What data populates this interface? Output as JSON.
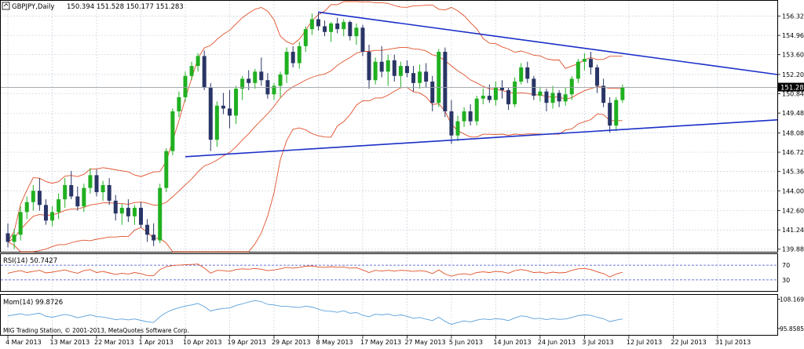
{
  "window": {
    "symbol_header": "GBPJPY,Daily",
    "ohlc_header": "150.394 151.528 150.177 151.283",
    "copyright": "MIG Trading Station, © 2001-2013, MetaQuotes Software Corp."
  },
  "colors": {
    "background": "#ffffff",
    "grid": "#c9d1dc",
    "bull_candle": "#20b020",
    "bear_candle": "#2a3566",
    "bollinger": "#e0502a",
    "trendline": "#1a2fc8",
    "rsi_line": "#e0502a",
    "momentum_line": "#5aa0dc",
    "level_line": "#3a48d0",
    "last_price_box": "#000000"
  },
  "chart_data": [
    {
      "type": "candlestick",
      "title": "GBPJPY,Daily",
      "price_axis_ticks": [
        "156.320",
        "154.960",
        "153.600",
        "152.200",
        "150.840",
        "149.480",
        "148.080",
        "146.720",
        "145.360",
        "144.000",
        "142.600",
        "141.240",
        "139.880"
      ],
      "ylim": [
        139.7,
        156.9
      ],
      "last_price_label": "151.283",
      "last_price": 151.283,
      "date_axis_ticks": [
        "4 Mar 2013",
        "13 Mar 2013",
        "22 Mar 2013",
        "1 Apr 2013",
        "10 Apr 2013",
        "19 Apr 2013",
        "29 Apr 2013",
        "8 May 2013",
        "17 May 2013",
        "27 May 2013",
        "5 Jun 2013",
        "14 Jun 2013",
        "24 Jun 2013",
        "3 Jul 2013",
        "12 Jul 2013",
        "22 Jul 2013",
        "31 Jul 2013"
      ],
      "candles_ohlc": [
        [
          141.0,
          141.7,
          140.0,
          140.4
        ],
        [
          140.4,
          141.3,
          139.9,
          140.9
        ],
        [
          140.9,
          142.9,
          140.5,
          142.5
        ],
        [
          142.5,
          143.6,
          142.0,
          143.2
        ],
        [
          143.2,
          144.4,
          142.6,
          144.0
        ],
        [
          144.0,
          144.9,
          142.6,
          143.0
        ],
        [
          143.0,
          143.4,
          141.6,
          141.9
        ],
        [
          141.9,
          142.9,
          141.5,
          142.5
        ],
        [
          142.5,
          143.8,
          142.0,
          143.4
        ],
        [
          143.4,
          144.9,
          142.8,
          144.4
        ],
        [
          144.4,
          145.4,
          143.4,
          143.6
        ],
        [
          143.6,
          144.3,
          142.6,
          142.9
        ],
        [
          142.9,
          144.5,
          142.5,
          144.2
        ],
        [
          144.2,
          145.6,
          143.8,
          145.1
        ],
        [
          145.1,
          145.5,
          143.6,
          143.9
        ],
        [
          143.9,
          144.7,
          143.3,
          144.4
        ],
        [
          144.4,
          144.9,
          143.0,
          143.3
        ],
        [
          143.3,
          143.7,
          141.9,
          142.4
        ],
        [
          142.4,
          143.1,
          141.6,
          142.8
        ],
        [
          142.8,
          143.4,
          141.8,
          142.2
        ],
        [
          142.2,
          143.0,
          141.6,
          142.8
        ],
        [
          142.8,
          143.2,
          141.4,
          141.6
        ],
        [
          141.6,
          142.0,
          140.4,
          140.9
        ],
        [
          140.9,
          141.7,
          140.1,
          140.5
        ],
        [
          140.5,
          144.5,
          140.3,
          144.2
        ],
        [
          144.2,
          147.0,
          143.9,
          146.8
        ],
        [
          146.8,
          149.8,
          146.5,
          149.6
        ],
        [
          149.6,
          151.0,
          149.2,
          150.6
        ],
        [
          150.6,
          152.4,
          150.3,
          152.1
        ],
        [
          152.1,
          153.1,
          151.8,
          152.8
        ],
        [
          152.8,
          153.7,
          152.4,
          153.5
        ],
        [
          153.5,
          153.9,
          151.1,
          151.3
        ],
        [
          151.3,
          151.6,
          146.8,
          147.6
        ],
        [
          147.6,
          150.3,
          147.1,
          150.0
        ],
        [
          150.0,
          150.9,
          149.4,
          149.8
        ],
        [
          149.8,
          151.1,
          148.4,
          149.3
        ],
        [
          149.3,
          151.4,
          148.7,
          151.2
        ],
        [
          151.2,
          152.1,
          150.4,
          151.9
        ],
        [
          151.9,
          152.5,
          151.1,
          151.6
        ],
        [
          151.6,
          152.6,
          151.2,
          152.4
        ],
        [
          152.4,
          153.4,
          151.4,
          151.8
        ],
        [
          151.8,
          152.3,
          150.5,
          150.8
        ],
        [
          150.8,
          151.6,
          150.4,
          151.4
        ],
        [
          151.4,
          152.4,
          150.6,
          152.2
        ],
        [
          152.2,
          154.1,
          151.6,
          153.8
        ],
        [
          153.8,
          154.2,
          152.7,
          153.0
        ],
        [
          153.0,
          154.5,
          152.6,
          154.2
        ],
        [
          154.2,
          155.6,
          153.8,
          155.4
        ],
        [
          155.4,
          156.5,
          155.0,
          156.1
        ],
        [
          156.1,
          156.6,
          155.3,
          155.6
        ],
        [
          155.6,
          156.0,
          154.9,
          155.2
        ],
        [
          155.2,
          155.9,
          154.5,
          155.8
        ],
        [
          155.8,
          156.2,
          155.1,
          155.4
        ],
        [
          155.4,
          156.1,
          154.9,
          155.9
        ],
        [
          155.9,
          156.0,
          154.6,
          154.9
        ],
        [
          154.9,
          155.8,
          154.3,
          155.5
        ],
        [
          155.5,
          155.7,
          153.5,
          153.8
        ],
        [
          153.8,
          154.3,
          151.2,
          151.8
        ],
        [
          151.8,
          153.4,
          151.5,
          153.1
        ],
        [
          153.1,
          154.2,
          152.0,
          152.4
        ],
        [
          152.4,
          153.6,
          151.4,
          153.2
        ],
        [
          153.2,
          153.6,
          151.7,
          152.1
        ],
        [
          152.1,
          153.1,
          151.3,
          152.8
        ],
        [
          152.8,
          153.2,
          152.0,
          152.3
        ],
        [
          152.3,
          152.8,
          151.0,
          151.6
        ],
        [
          151.6,
          152.9,
          151.2,
          152.4
        ],
        [
          152.4,
          153.0,
          151.3,
          151.7
        ],
        [
          151.7,
          152.1,
          149.6,
          150.2
        ],
        [
          150.2,
          154.0,
          149.9,
          153.8
        ],
        [
          153.8,
          154.1,
          149.2,
          149.6
        ],
        [
          149.6,
          150.4,
          147.3,
          147.9
        ],
        [
          147.9,
          149.3,
          147.5,
          148.9
        ],
        [
          148.9,
          149.9,
          148.5,
          149.6
        ],
        [
          149.6,
          150.1,
          148.6,
          148.9
        ],
        [
          148.9,
          150.7,
          148.6,
          150.5
        ],
        [
          150.5,
          151.2,
          150.1,
          150.7
        ],
        [
          150.7,
          151.5,
          150.2,
          150.4
        ],
        [
          150.4,
          151.7,
          150.0,
          151.3
        ],
        [
          151.3,
          151.8,
          150.5,
          151.1
        ],
        [
          151.1,
          151.3,
          149.7,
          150.1
        ],
        [
          150.1,
          152.0,
          149.9,
          151.7
        ],
        [
          151.7,
          153.0,
          151.5,
          152.7
        ],
        [
          152.7,
          153.1,
          151.6,
          151.9
        ],
        [
          151.9,
          152.1,
          150.4,
          150.7
        ],
        [
          150.7,
          151.3,
          150.3,
          151.0
        ],
        [
          151.0,
          151.2,
          149.6,
          150.2
        ],
        [
          150.2,
          151.4,
          149.8,
          150.9
        ],
        [
          150.9,
          151.1,
          149.9,
          150.3
        ],
        [
          150.3,
          151.3,
          150.0,
          150.8
        ],
        [
          150.8,
          152.1,
          150.4,
          151.9
        ],
        [
          151.9,
          153.3,
          151.6,
          153.1
        ],
        [
          153.1,
          153.7,
          152.5,
          153.3
        ],
        [
          153.3,
          153.8,
          152.2,
          152.7
        ],
        [
          152.7,
          152.9,
          150.9,
          151.4
        ],
        [
          151.4,
          151.9,
          149.9,
          150.2
        ],
        [
          150.2,
          150.6,
          148.1,
          148.6
        ],
        [
          148.6,
          150.6,
          148.2,
          150.4
        ],
        [
          150.4,
          151.5,
          150.2,
          151.3
        ]
      ],
      "trendlines": [
        {
          "from": [
            "8 May 2013",
            156.6
          ],
          "to": [
            "chart right edge",
            152.2
          ]
        },
        {
          "from": [
            "10 Apr 2013",
            146.4
          ],
          "to": [
            "chart right edge",
            149.0
          ]
        }
      ]
    },
    {
      "type": "line",
      "title": "RSI(14) 50.7427",
      "ylim": [
        0,
        100
      ],
      "levels": [
        30,
        70
      ],
      "axis_ticks": [
        "70",
        "30"
      ],
      "series": [
        {
          "values": [
            48,
            52,
            55,
            50,
            53,
            56,
            49,
            51,
            54,
            57,
            52,
            48,
            55,
            58,
            50,
            53,
            49,
            45,
            48,
            46,
            50,
            47,
            42,
            41,
            58,
            66,
            69,
            70,
            71,
            72,
            73,
            62,
            48,
            56,
            55,
            53,
            58,
            60,
            59,
            61,
            59,
            55,
            57,
            60,
            64,
            62,
            64,
            67,
            68,
            65,
            64,
            66,
            64,
            65,
            62,
            63,
            57,
            50,
            56,
            54,
            56,
            54,
            56,
            55,
            53,
            55,
            53,
            47,
            57,
            46,
            40,
            45,
            47,
            44,
            50,
            52,
            50,
            53,
            52,
            48,
            55,
            58,
            55,
            50,
            51,
            48,
            51,
            49,
            50,
            56,
            60,
            61,
            58,
            52,
            47,
            38,
            46,
            50.7427
          ]
        }
      ]
    },
    {
      "type": "line",
      "title": "Mom(14) 99.8726",
      "ylim": [
        93.2,
        110.0
      ],
      "axis_ticks": [
        "108.1691",
        "95.85856"
      ],
      "series": [
        {
          "values": [
            101.2,
            101.6,
            102.1,
            101.4,
            101.9,
            102.3,
            101.0,
            100.6,
            101.2,
            101.8,
            101.3,
            100.4,
            101.0,
            101.6,
            100.9,
            100.7,
            100.2,
            99.6,
            99.9,
            99.5,
            99.9,
            99.3,
            98.7,
            98.4,
            100.8,
            102.6,
            103.8,
            104.6,
            105.3,
            105.8,
            106.4,
            105.1,
            103.2,
            103.9,
            104.3,
            104.5,
            105.6,
            106.2,
            107.0,
            107.6,
            107.2,
            106.0,
            105.8,
            105.3,
            105.2,
            104.9,
            104.7,
            105.3,
            104.9,
            104.0,
            103.2,
            103.1,
            102.7,
            103.3,
            102.3,
            102.6,
            101.4,
            100.8,
            101.9,
            101.6,
            102.0,
            101.2,
            101.6,
            101.0,
            100.2,
            100.5,
            99.8,
            99.2,
            100.6,
            98.9,
            97.6,
            98.4,
            99.1,
            98.6,
            99.4,
            99.9,
            99.6,
            100.0,
            99.8,
            99.2,
            100.3,
            101.2,
            100.8,
            100.0,
            100.2,
            99.6,
            100.1,
            99.7,
            99.9,
            100.5,
            101.3,
            101.6,
            101.4,
            100.6,
            100.0,
            98.8,
            99.4,
            99.8726
          ]
        }
      ]
    }
  ]
}
